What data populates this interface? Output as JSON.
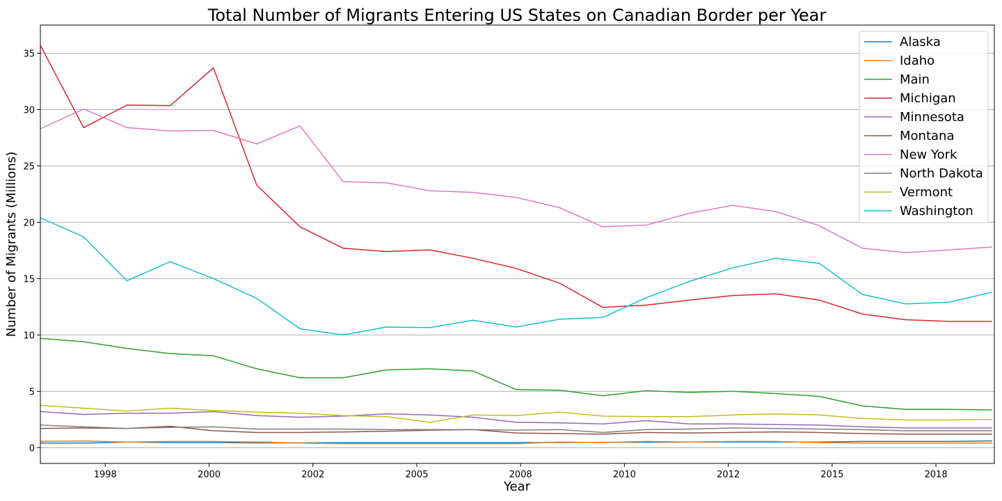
{
  "chart_data": {
    "type": "line",
    "title": "Total Number of Migrants Entering US States on Canadian Border per Year",
    "xlabel": "Year",
    "ylabel": "Number of Migrants (Millions)",
    "xlim": [
      1996.9,
      2018.95
    ],
    "ylim": [
      -1.4,
      37.5
    ],
    "x": [
      1996.9,
      1997.9,
      1998.9,
      1999.9,
      2000.9,
      2001.9,
      2002.9,
      2003.9,
      2004.9,
      2005.9,
      2006.9,
      2007.9,
      2008.9,
      2009.9,
      2010.9,
      2011.9,
      2012.9,
      2013.9,
      2014.9,
      2015.9,
      2016.9,
      2017.9,
      2018.9
    ],
    "x_ticks": [
      {
        "value": 1998.4,
        "label": "1998"
      },
      {
        "value": 2000.8,
        "label": "2000"
      },
      {
        "value": 2003.2,
        "label": "2002"
      },
      {
        "value": 2005.6,
        "label": "2005"
      },
      {
        "value": 2008.0,
        "label": "2008"
      },
      {
        "value": 2010.4,
        "label": "2010"
      },
      {
        "value": 2012.8,
        "label": "2012"
      },
      {
        "value": 2015.2,
        "label": "2015"
      },
      {
        "value": 2017.6,
        "label": "2018"
      }
    ],
    "y_ticks": [
      0,
      5,
      10,
      15,
      20,
      25,
      30,
      35
    ],
    "grid": "y",
    "legend_position": "top-right",
    "series": [
      {
        "name": "Alaska",
        "color": "#1f77b4",
        "values": [
          0.4,
          0.4,
          0.5,
          0.45,
          0.45,
          0.42,
          0.42,
          0.45,
          0.45,
          0.45,
          0.45,
          0.45,
          0.45,
          0.48,
          0.48,
          0.5,
          0.5,
          0.5,
          0.5,
          0.55,
          0.55,
          0.55,
          0.6
        ]
      },
      {
        "name": "Idaho",
        "color": "#ff7f0e",
        "values": [
          0.55,
          0.6,
          0.5,
          0.55,
          0.55,
          0.5,
          0.4,
          0.35,
          0.35,
          0.35,
          0.35,
          0.35,
          0.5,
          0.45,
          0.55,
          0.5,
          0.55,
          0.55,
          0.45,
          0.4,
          0.4,
          0.4,
          0.4
        ]
      },
      {
        "name": "Main",
        "color": "#2ca02c",
        "values": [
          9.7,
          9.4,
          8.8,
          8.35,
          8.15,
          7.0,
          6.2,
          6.2,
          6.9,
          7.0,
          6.8,
          5.15,
          5.1,
          4.6,
          5.05,
          4.9,
          5.0,
          4.8,
          4.55,
          3.7,
          3.4,
          3.4,
          3.35
        ]
      },
      {
        "name": "Michigan",
        "color": "#d62728",
        "values": [
          35.7,
          28.4,
          30.4,
          30.35,
          33.7,
          23.3,
          19.6,
          17.7,
          17.4,
          17.55,
          16.8,
          15.9,
          14.6,
          12.45,
          12.65,
          13.1,
          13.5,
          13.65,
          13.1,
          11.85,
          11.35,
          11.2,
          11.2
        ]
      },
      {
        "name": "Minnesota",
        "color": "#9467bd",
        "values": [
          3.2,
          2.95,
          3.05,
          3.05,
          3.2,
          2.85,
          2.7,
          2.8,
          3.0,
          2.9,
          2.7,
          2.25,
          2.2,
          2.1,
          2.4,
          2.1,
          2.1,
          2.05,
          2.0,
          1.85,
          1.75,
          1.75,
          1.75
        ]
      },
      {
        "name": "Montana",
        "color": "#8c564b",
        "values": [
          1.7,
          1.75,
          1.7,
          1.9,
          1.5,
          1.35,
          1.35,
          1.4,
          1.45,
          1.55,
          1.6,
          1.3,
          1.25,
          1.2,
          1.35,
          1.3,
          1.35,
          1.4,
          1.35,
          1.25,
          1.2,
          1.2,
          1.2
        ]
      },
      {
        "name": "New York",
        "color": "#e377c2",
        "values": [
          28.3,
          30.05,
          28.4,
          28.1,
          28.15,
          26.95,
          28.55,
          23.6,
          23.5,
          22.8,
          22.65,
          22.2,
          21.3,
          19.6,
          19.75,
          20.8,
          21.5,
          20.95,
          19.7,
          17.7,
          17.3,
          17.55,
          17.8
        ]
      },
      {
        "name": "North Dakota",
        "color": "#7f7f7f",
        "values": [
          2.0,
          1.85,
          1.7,
          1.8,
          1.85,
          1.65,
          1.65,
          1.65,
          1.6,
          1.6,
          1.6,
          1.55,
          1.6,
          1.35,
          1.6,
          1.65,
          1.75,
          1.7,
          1.65,
          1.6,
          1.5,
          1.5,
          1.5
        ]
      },
      {
        "name": "Vermont",
        "color": "#bcbd22",
        "values": [
          3.75,
          3.5,
          3.25,
          3.5,
          3.3,
          3.15,
          3.05,
          2.85,
          2.75,
          2.25,
          2.9,
          2.85,
          3.15,
          2.8,
          2.75,
          2.75,
          2.9,
          3.0,
          2.9,
          2.6,
          2.45,
          2.45,
          2.5
        ]
      },
      {
        "name": "Washington",
        "color": "#17becf",
        "values": [
          20.4,
          18.7,
          14.8,
          16.5,
          15.0,
          13.25,
          10.55,
          10.0,
          10.7,
          10.65,
          11.3,
          10.7,
          11.4,
          11.55,
          13.3,
          14.75,
          15.95,
          16.8,
          16.35,
          13.6,
          12.75,
          12.9,
          13.8
        ]
      }
    ]
  }
}
